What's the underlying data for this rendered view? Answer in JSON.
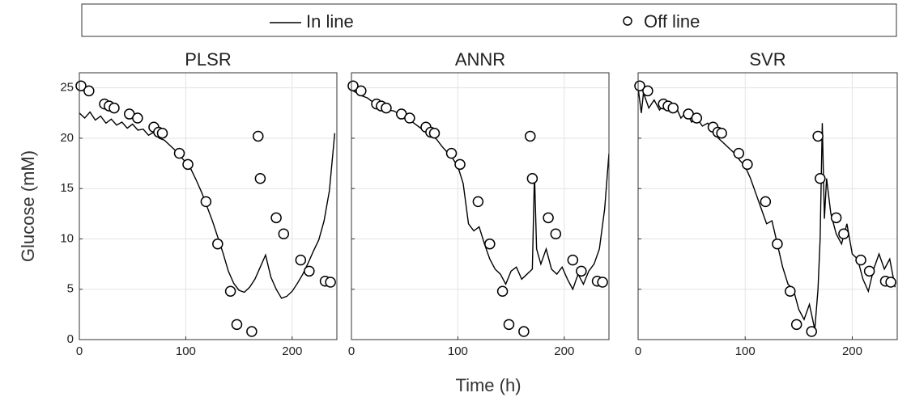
{
  "legend": [
    "In line",
    "Off line"
  ],
  "x_label": "Time (h)",
  "y_label": "Glucose (mM)",
  "chart_data": [
    {
      "type": "line",
      "title": "PLSR",
      "xlim": [
        0,
        242
      ],
      "ylim": [
        0,
        26.5
      ],
      "xticks": [
        0,
        100,
        200
      ],
      "yticks": [
        0,
        5,
        10,
        15,
        20,
        25
      ],
      "yticklabels": true,
      "grid": true,
      "series": [
        {
          "color": "#000000",
          "x": [
            0,
            5,
            10,
            15,
            20,
            25,
            30,
            35,
            40,
            45,
            50,
            55,
            60,
            65,
            70,
            75,
            80,
            85,
            90,
            95,
            100,
            105,
            110,
            115,
            120,
            125,
            130,
            135,
            140,
            145,
            150,
            155,
            160,
            165,
            170,
            175,
            180,
            185,
            190,
            195,
            200,
            205,
            210,
            215,
            220,
            225,
            230,
            235,
            240
          ],
          "values": [
            22.5,
            22.0,
            22.6,
            21.8,
            22.2,
            21.5,
            21.9,
            21.3,
            21.6,
            21.0,
            21.4,
            20.8,
            20.9,
            20.3,
            20.6,
            20.0,
            19.8,
            19.3,
            18.8,
            18.2,
            17.6,
            16.9,
            15.8,
            14.6,
            13.2,
            11.8,
            10.2,
            8.6,
            6.8,
            5.6,
            4.9,
            4.7,
            5.2,
            6.0,
            7.2,
            8.4,
            6.2,
            5.0,
            4.1,
            4.3,
            4.8,
            5.6,
            6.5,
            7.6,
            8.8,
            9.9,
            11.8,
            14.8,
            20.5
          ]
        },
        {
          "color": "#000000",
          "marker": "circle",
          "x": [
            1.5,
            9,
            23.6,
            28,
            32.7,
            47,
            54.7,
            70,
            74.5,
            78,
            94,
            102,
            119,
            130,
            142,
            148,
            162,
            168,
            170,
            185,
            192,
            208,
            216,
            231,
            236
          ],
          "values": [
            25.2,
            24.7,
            23.4,
            23.2,
            23.0,
            22.4,
            22.0,
            21.1,
            20.6,
            20.5,
            18.5,
            17.4,
            13.7,
            9.5,
            4.8,
            1.5,
            0.8,
            20.2,
            16.0,
            12.1,
            10.5,
            7.9,
            6.8,
            5.8,
            5.7
          ]
        }
      ]
    },
    {
      "type": "line",
      "title": "ANNR",
      "xlim": [
        0,
        242
      ],
      "ylim": [
        0,
        26.5
      ],
      "xticks": [
        0,
        100,
        200
      ],
      "yticks": [
        0,
        5,
        10,
        15,
        20,
        25
      ],
      "yticklabels": false,
      "grid": true,
      "series": [
        {
          "color": "#000000",
          "x": [
            0,
            5,
            10,
            15,
            20,
            25,
            30,
            35,
            40,
            45,
            50,
            55,
            60,
            65,
            70,
            75,
            80,
            85,
            90,
            95,
            100,
            105,
            110,
            115,
            120,
            125,
            130,
            135,
            140,
            145,
            150,
            155,
            160,
            165,
            170,
            172,
            174,
            178,
            183,
            188,
            193,
            198,
            203,
            208,
            213,
            218,
            223,
            228,
            233,
            238,
            242
          ],
          "values": [
            24.8,
            24.5,
            24.2,
            24.0,
            23.6,
            23.3,
            23.0,
            22.8,
            22.7,
            22.4,
            22.1,
            21.8,
            21.4,
            21.0,
            20.8,
            20.3,
            19.9,
            19.2,
            18.6,
            18.0,
            17.2,
            15.5,
            11.5,
            10.8,
            11.2,
            9.5,
            8.0,
            7.0,
            6.5,
            5.5,
            6.8,
            7.2,
            6.0,
            6.5,
            7.0,
            16.5,
            9.0,
            7.5,
            9.0,
            7.0,
            6.5,
            7.2,
            6.0,
            5.0,
            6.5,
            5.5,
            6.8,
            7.5,
            9.0,
            13.0,
            18.5
          ]
        },
        {
          "color": "#000000",
          "marker": "circle",
          "x": [
            1.5,
            9,
            23.6,
            28,
            32.7,
            47,
            54.7,
            70,
            74.5,
            78,
            94,
            102,
            119,
            130,
            142,
            148,
            162,
            168,
            170,
            185,
            192,
            208,
            216,
            231,
            236
          ],
          "values": [
            25.2,
            24.7,
            23.4,
            23.2,
            23.0,
            22.4,
            22.0,
            21.1,
            20.6,
            20.5,
            18.5,
            17.4,
            13.7,
            9.5,
            4.8,
            1.5,
            0.8,
            20.2,
            16.0,
            12.1,
            10.5,
            7.9,
            6.8,
            5.8,
            5.7
          ]
        }
      ]
    },
    {
      "type": "line",
      "title": "SVR",
      "xlim": [
        0,
        242
      ],
      "ylim": [
        0,
        26.5
      ],
      "xticks": [
        0,
        100,
        200
      ],
      "yticks": [
        0,
        5,
        10,
        15,
        20,
        25
      ],
      "yticklabels": false,
      "grid": true,
      "series": [
        {
          "color": "#000000",
          "x": [
            0,
            3,
            5,
            10,
            15,
            20,
            25,
            30,
            35,
            40,
            45,
            50,
            55,
            60,
            65,
            70,
            75,
            80,
            85,
            90,
            95,
            100,
            105,
            110,
            115,
            120,
            125,
            130,
            135,
            140,
            145,
            150,
            155,
            160,
            165,
            168,
            170,
            172,
            174,
            176,
            180,
            185,
            190,
            195,
            200,
            205,
            210,
            215,
            220,
            225,
            230,
            235,
            240
          ],
          "values": [
            25.0,
            22.5,
            24.5,
            23.0,
            23.8,
            22.8,
            23.5,
            22.6,
            23.2,
            22.0,
            22.6,
            21.6,
            22.0,
            21.2,
            21.5,
            20.8,
            20.0,
            19.5,
            19.0,
            18.5,
            17.8,
            17.2,
            16.0,
            14.5,
            13.0,
            11.5,
            11.8,
            9.5,
            7.2,
            5.5,
            5.0,
            3.0,
            2.0,
            3.5,
            1.0,
            5.0,
            10.0,
            21.5,
            12.0,
            16.0,
            12.5,
            10.5,
            9.5,
            11.5,
            8.5,
            8.0,
            6.0,
            4.8,
            7.0,
            8.5,
            7.0,
            8.0,
            5.2
          ]
        },
        {
          "color": "#000000",
          "marker": "circle",
          "x": [
            1.5,
            9,
            23.6,
            28,
            32.7,
            47,
            54.7,
            70,
            74.5,
            78,
            94,
            102,
            119,
            130,
            142,
            148,
            162,
            168,
            170,
            185,
            192,
            208,
            216,
            231,
            236
          ],
          "values": [
            25.2,
            24.7,
            23.4,
            23.2,
            23.0,
            22.4,
            22.0,
            21.1,
            20.6,
            20.5,
            18.5,
            17.4,
            13.7,
            9.5,
            4.8,
            1.5,
            0.8,
            20.2,
            16.0,
            12.1,
            10.5,
            7.9,
            6.8,
            5.8,
            5.7
          ]
        }
      ]
    }
  ]
}
